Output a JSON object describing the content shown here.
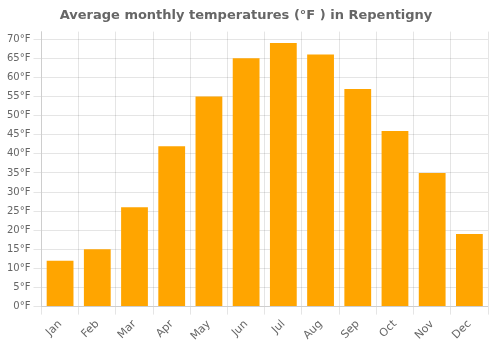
{
  "chart_data": {
    "type": "bar",
    "title": "Average monthly temperatures (°F ) in Repentigny",
    "categories": [
      "Jan",
      "Feb",
      "Mar",
      "Apr",
      "May",
      "Jun",
      "Jul",
      "Aug",
      "Sep",
      "Oct",
      "Nov",
      "Dec"
    ],
    "values": [
      12,
      15,
      26,
      42,
      55,
      65,
      69,
      66,
      57,
      46,
      35,
      19
    ],
    "color": "#FFA500",
    "ylim": [
      0,
      72
    ],
    "yticks": [
      {
        "value": 0,
        "label": "0°F"
      },
      {
        "value": 5,
        "label": "5°F"
      },
      {
        "value": 10,
        "label": "10°F"
      },
      {
        "value": 15,
        "label": "15°F"
      },
      {
        "value": 20,
        "label": "20°F"
      },
      {
        "value": 25,
        "label": "25°F"
      },
      {
        "value": 30,
        "label": "30°F"
      },
      {
        "value": 35,
        "label": "35°F"
      },
      {
        "value": 40,
        "label": "40°F"
      },
      {
        "value": 45,
        "label": "45°F"
      },
      {
        "value": 50,
        "label": "50°F"
      },
      {
        "value": 55,
        "label": "55°F"
      },
      {
        "value": 60,
        "label": "60°F"
      },
      {
        "value": 65,
        "label": "65°F"
      },
      {
        "value": 70,
        "label": "70°F"
      }
    ],
    "grid": true
  }
}
